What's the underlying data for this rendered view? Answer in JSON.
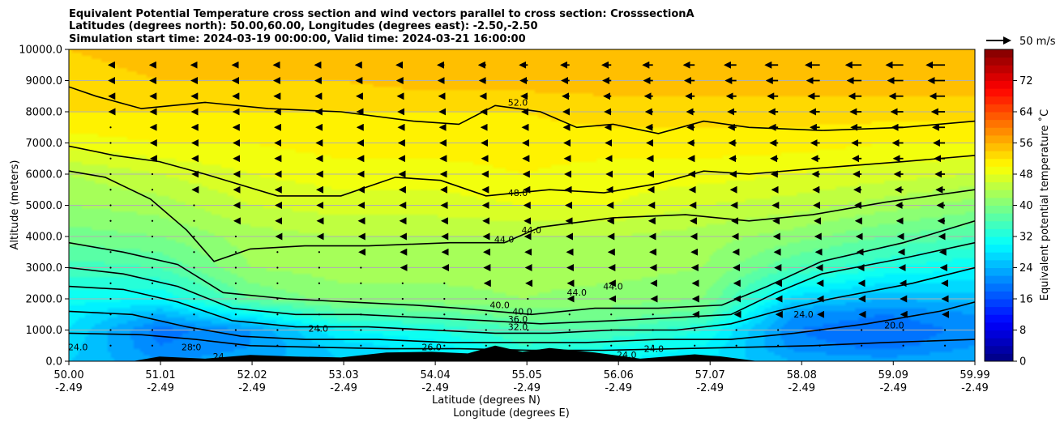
{
  "chart_data": {
    "type": "heatmap",
    "title_lines": [
      "Equivalent Potential Temperature cross section and wind vectors parallel to cross section: CrosssectionA",
      "Latitudes (degrees north): 50.00,60.00, Longitudes (degrees east): -2.50,-2.50",
      "Simulation start time: 2024-03-19 00:00:00, Valid time: 2024-03-21 16:00:00"
    ],
    "xlabel_lines": [
      "Latitude (degrees N)",
      "Longitude (degrees E)"
    ],
    "ylabel": "Altitude (meters)",
    "x_ticks": [
      {
        "lat": 50.0,
        "lat_label": "50.00",
        "lon_label": "-2.49"
      },
      {
        "lat": 51.01,
        "lat_label": "51.01",
        "lon_label": "-2.49"
      },
      {
        "lat": 52.02,
        "lat_label": "52.02",
        "lon_label": "-2.49"
      },
      {
        "lat": 53.03,
        "lat_label": "53.03",
        "lon_label": "-2.49"
      },
      {
        "lat": 54.04,
        "lat_label": "54.04",
        "lon_label": "-2.49"
      },
      {
        "lat": 55.05,
        "lat_label": "55.05",
        "lon_label": "-2.49"
      },
      {
        "lat": 56.06,
        "lat_label": "56.06",
        "lon_label": "-2.49"
      },
      {
        "lat": 57.07,
        "lat_label": "57.07",
        "lon_label": "-2.49"
      },
      {
        "lat": 58.08,
        "lat_label": "58.08",
        "lon_label": "-2.49"
      },
      {
        "lat": 59.09,
        "lat_label": "59.09",
        "lon_label": "-2.49"
      },
      {
        "lat": 59.99,
        "lat_label": "59.99",
        "lon_label": "-2.49"
      }
    ],
    "xlim": [
      50.0,
      59.99
    ],
    "ylim": [
      0,
      10000
    ],
    "y_ticks": [
      {
        "value": 0,
        "label": "0.0"
      },
      {
        "value": 1000,
        "label": "1000.0"
      },
      {
        "value": 2000,
        "label": "2000.0"
      },
      {
        "value": 3000,
        "label": "3000.0"
      },
      {
        "value": 4000,
        "label": "4000.0"
      },
      {
        "value": 5000,
        "label": "5000.0"
      },
      {
        "value": 6000,
        "label": "6000.0"
      },
      {
        "value": 7000,
        "label": "7000.0"
      },
      {
        "value": 8000,
        "label": "8000.0"
      },
      {
        "value": 9000,
        "label": "9000.0"
      },
      {
        "value": 10000,
        "label": "10000.0"
      }
    ],
    "grid": "horizontal",
    "colorbar": {
      "label": "Equivalent potential temperature ˚C",
      "range": [
        0,
        80
      ],
      "step": 2,
      "ticks": [
        {
          "value": 0,
          "label": "0"
        },
        {
          "value": 8,
          "label": "8"
        },
        {
          "value": 16,
          "label": "16"
        },
        {
          "value": 24,
          "label": "24"
        },
        {
          "value": 32,
          "label": "32"
        },
        {
          "value": 40,
          "label": "40"
        },
        {
          "value": 48,
          "label": "48"
        },
        {
          "value": 56,
          "label": "56"
        },
        {
          "value": 64,
          "label": "64"
        },
        {
          "value": 72,
          "label": "72"
        }
      ]
    },
    "quiver_key": {
      "label": "50 m/s",
      "speed": 50
    },
    "theta_e_levels": [
      {
        "alt": 0,
        "lat": [
          50.0,
          51.0,
          52.0,
          53.0,
          54.0,
          55.0,
          56.0,
          57.0,
          58.0,
          59.0,
          60.0
        ],
        "value": [
          26,
          22,
          23,
          26,
          28,
          30,
          30,
          28,
          24,
          23,
          24
        ]
      },
      {
        "alt": 500,
        "lat": [
          50.0,
          51.0,
          52.0,
          53.0,
          54.0,
          55.0,
          56.0,
          57.0,
          58.0,
          59.0,
          60.0
        ],
        "value": [
          27,
          20,
          22,
          27,
          29,
          34,
          32,
          30,
          21,
          19,
          22
        ]
      },
      {
        "alt": 1000,
        "lat": [
          50.0,
          51.0,
          52.0,
          53.0,
          54.0,
          55.0,
          56.0,
          57.0,
          58.0,
          59.0,
          60.0
        ],
        "value": [
          28,
          19,
          22,
          30,
          32,
          36,
          36,
          32,
          20,
          18,
          21
        ]
      },
      {
        "alt": 1500,
        "lat": [
          50.0,
          51.0,
          52.0,
          53.0,
          54.0,
          55.0,
          56.0,
          57.0,
          58.0,
          59.0,
          60.0
        ],
        "value": [
          29,
          24,
          30,
          36,
          37,
          39,
          39,
          37,
          22,
          20,
          22
        ]
      },
      {
        "alt": 2000,
        "lat": [
          50.0,
          51.0,
          52.0,
          53.0,
          54.0,
          55.0,
          56.0,
          57.0,
          58.0,
          59.0,
          60.0
        ],
        "value": [
          31,
          30,
          38,
          41,
          41,
          42,
          41,
          40,
          27,
          24,
          25
        ]
      },
      {
        "alt": 3000,
        "lat": [
          50.0,
          51.0,
          52.0,
          53.0,
          54.0,
          55.0,
          56.0,
          57.0,
          58.0,
          59.0,
          60.0
        ],
        "value": [
          35,
          36,
          42,
          43,
          43,
          43,
          43,
          42,
          36,
          32,
          30
        ]
      },
      {
        "alt": 4000,
        "lat": [
          50.0,
          51.0,
          52.0,
          53.0,
          54.0,
          55.0,
          56.0,
          57.0,
          58.0,
          59.0,
          60.0
        ],
        "value": [
          39,
          40,
          43,
          44,
          44,
          44,
          44,
          43,
          41,
          38,
          36
        ]
      },
      {
        "alt": 5000,
        "lat": [
          50.0,
          51.0,
          52.0,
          53.0,
          54.0,
          55.0,
          56.0,
          57.0,
          58.0,
          59.0,
          60.0
        ],
        "value": [
          42,
          43,
          46,
          47,
          47,
          48,
          48,
          46,
          45,
          43,
          41
        ]
      },
      {
        "alt": 6000,
        "lat": [
          50.0,
          51.0,
          52.0,
          53.0,
          54.0,
          55.0,
          56.0,
          57.0,
          58.0,
          59.0,
          60.0
        ],
        "value": [
          44,
          46,
          48,
          49,
          49,
          50,
          49,
          49,
          48,
          47,
          46
        ]
      },
      {
        "alt": 7000,
        "lat": [
          50.0,
          51.0,
          52.0,
          53.0,
          54.0,
          55.0,
          56.0,
          57.0,
          58.0,
          59.0,
          60.0
        ],
        "value": [
          49,
          50,
          50,
          51,
          51,
          51,
          51,
          51,
          51,
          50,
          50
        ]
      },
      {
        "alt": 8000,
        "lat": [
          50.0,
          51.0,
          52.0,
          53.0,
          54.0,
          55.0,
          56.0,
          57.0,
          58.0,
          59.0,
          60.0
        ],
        "value": [
          52,
          52,
          52,
          52,
          52,
          52,
          53,
          53,
          53,
          53,
          53
        ]
      },
      {
        "alt": 9000,
        "lat": [
          50.0,
          51.0,
          52.0,
          53.0,
          54.0,
          55.0,
          56.0,
          57.0,
          58.0,
          59.0,
          60.0
        ],
        "value": [
          53,
          54,
          54,
          54,
          55,
          55,
          55,
          55,
          55,
          55,
          55
        ]
      },
      {
        "alt": 10000,
        "lat": [
          50.0,
          51.0,
          52.0,
          53.0,
          54.0,
          55.0,
          56.0,
          57.0,
          58.0,
          59.0,
          60.0
        ],
        "value": [
          54,
          55,
          55,
          56,
          56,
          56,
          56,
          56,
          56,
          56,
          56
        ]
      }
    ],
    "contour_lines": [
      {
        "level": "52",
        "lat": [
          50.0,
          50.3,
          50.8,
          51.5,
          52.2,
          53.0,
          53.8,
          54.3,
          54.7,
          55.2,
          55.6,
          56.0,
          56.5,
          57.0,
          57.5,
          58.3,
          59.2,
          59.99
        ],
        "alt": [
          8800,
          8500,
          8100,
          8300,
          8100,
          8000,
          7700,
          7600,
          8200,
          8000,
          7500,
          7600,
          7300,
          7700,
          7500,
          7400,
          7500,
          7700
        ]
      },
      {
        "level": "48",
        "lat": [
          50.0,
          50.5,
          51.0,
          51.5,
          52.3,
          53.0,
          53.6,
          54.1,
          54.6,
          55.3,
          55.9,
          56.5,
          57.0,
          57.5,
          58.3,
          59.2,
          59.99
        ],
        "alt": [
          6900,
          6600,
          6400,
          6000,
          5300,
          5300,
          5900,
          5800,
          5300,
          5500,
          5400,
          5700,
          6100,
          6000,
          6200,
          6400,
          6600
        ]
      },
      {
        "level": "44",
        "lat": [
          50.0,
          50.4,
          50.9,
          51.3,
          51.6,
          52.0,
          52.6,
          53.3,
          54.2,
          54.8,
          55.2,
          56.0,
          56.8,
          57.5,
          58.2,
          59.0,
          59.99
        ],
        "alt": [
          6100,
          5900,
          5200,
          4200,
          3200,
          3600,
          3700,
          3700,
          3800,
          3800,
          4300,
          4600,
          4700,
          4500,
          4700,
          5100,
          5500
        ]
      },
      {
        "level": "40",
        "lat": [
          50.0,
          50.6,
          51.2,
          51.7,
          52.4,
          53.1,
          53.8,
          54.3,
          54.7,
          55.1,
          55.8,
          56.5,
          57.2,
          57.7,
          58.3,
          59.2,
          59.99
        ],
        "alt": [
          3800,
          3500,
          3100,
          2200,
          2000,
          1900,
          1800,
          1700,
          1600,
          1500,
          1700,
          1700,
          1800,
          2400,
          3200,
          3800,
          4500
        ]
      },
      {
        "level": "36",
        "lat": [
          50.0,
          50.6,
          51.2,
          51.8,
          52.5,
          53.2,
          53.9,
          54.6,
          55.2,
          56.0,
          56.7,
          57.3,
          57.8,
          58.3,
          59.2,
          59.99
        ],
        "alt": [
          3000,
          2800,
          2400,
          1700,
          1500,
          1500,
          1400,
          1300,
          1200,
          1300,
          1400,
          1500,
          2200,
          2800,
          3300,
          3800
        ]
      },
      {
        "level": "32",
        "lat": [
          50.0,
          50.6,
          51.2,
          51.8,
          52.5,
          53.3,
          54.0,
          54.7,
          55.3,
          56.0,
          56.7,
          57.3,
          57.8,
          58.4,
          59.3,
          59.99
        ],
        "alt": [
          2400,
          2300,
          1900,
          1300,
          1100,
          1100,
          1000,
          900,
          900,
          1000,
          1000,
          1200,
          1600,
          2000,
          2500,
          3000
        ]
      },
      {
        "level": "28",
        "lat": [
          50.0,
          50.7,
          51.3,
          51.9,
          52.6,
          53.4,
          54.2,
          54.9,
          55.7,
          56.5,
          57.3,
          58.0,
          58.8,
          59.6,
          59.99
        ],
        "alt": [
          1600,
          1500,
          1100,
          800,
          700,
          700,
          600,
          600,
          600,
          700,
          700,
          900,
          1200,
          1600,
          1900
        ]
      },
      {
        "level": "24",
        "lat": [
          50.0,
          50.8,
          51.4,
          52.0,
          52.7,
          53.5,
          54.3,
          55.1,
          55.9,
          56.7,
          57.5,
          58.2,
          59.0,
          59.99
        ],
        "alt": [
          900,
          850,
          700,
          500,
          450,
          400,
          400,
          350,
          350,
          400,
          450,
          500,
          600,
          700
        ]
      }
    ],
    "contour_labels": [
      {
        "text": "52.0",
        "lat": 54.95,
        "alt": 8200
      },
      {
        "text": "48.0",
        "lat": 54.95,
        "alt": 5300
      },
      {
        "text": "44.0",
        "lat": 54.8,
        "alt": 3800
      },
      {
        "text": "44.0",
        "lat": 55.1,
        "alt": 4100
      },
      {
        "text": "44.0",
        "lat": 55.6,
        "alt": 2100
      },
      {
        "text": "44.0",
        "lat": 56.0,
        "alt": 2300
      },
      {
        "text": "40.0",
        "lat": 54.75,
        "alt": 1700
      },
      {
        "text": "40.0",
        "lat": 55.0,
        "alt": 1500
      },
      {
        "text": "36.0",
        "lat": 54.95,
        "alt": 1250
      },
      {
        "text": "32.0",
        "lat": 54.95,
        "alt": 1000
      },
      {
        "text": "24.0",
        "lat": 52.75,
        "alt": 950
      },
      {
        "text": "24.0",
        "lat": 50.1,
        "alt": 350
      },
      {
        "text": "28.0",
        "lat": 51.35,
        "alt": 350
      },
      {
        "text": "24",
        "lat": 51.65,
        "alt": 50
      },
      {
        "text": "26.0",
        "lat": 54.0,
        "alt": 350
      },
      {
        "text": "24.0",
        "lat": 56.15,
        "alt": 100
      },
      {
        "text": "24.0",
        "lat": 56.45,
        "alt": 300
      },
      {
        "text": "24.0",
        "lat": 58.1,
        "alt": 1400
      },
      {
        "text": "20.0",
        "lat": 59.1,
        "alt": 1050
      }
    ],
    "terrain": {
      "lat": [
        50.7,
        51.0,
        51.5,
        52.0,
        52.5,
        53.0,
        53.5,
        54.0,
        54.4,
        54.7,
        55.0,
        55.3,
        55.8,
        56.3,
        56.9,
        57.2,
        57.6
      ],
      "alt": [
        0,
        150,
        80,
        200,
        150,
        120,
        280,
        300,
        250,
        500,
        300,
        420,
        280,
        80,
        220,
        150,
        0
      ]
    },
    "wind_grid": {
      "lat": [
        50.46,
        50.92,
        51.38,
        51.84,
        52.3,
        52.76,
        53.22,
        53.68,
        54.14,
        54.6,
        55.06,
        55.52,
        55.98,
        56.44,
        56.9,
        57.36,
        57.82,
        58.28,
        58.74,
        59.2,
        59.66
      ],
      "alt": [
        500,
        1000,
        1500,
        2000,
        2500,
        3000,
        3500,
        4000,
        4500,
        5000,
        5500,
        6000,
        6500,
        7000,
        7500,
        8000,
        8500,
        9000,
        9500
      ],
      "u_profile_ms": [
        -0.5,
        -1,
        -2,
        -2.5,
        -3,
        -4,
        -5,
        -6,
        -7,
        -8,
        -9,
        -10,
        -11,
        -12,
        -13,
        -14,
        -16,
        -18,
        -20
      ],
      "lat_scale": [
        0.15,
        0.2,
        0.25,
        0.3,
        0.35,
        0.4,
        0.5,
        0.6,
        0.65,
        0.7,
        0.8,
        0.85,
        0.9,
        1.0,
        1.1,
        1.2,
        1.3,
        1.45,
        1.6,
        1.75,
        1.9
      ]
    }
  }
}
